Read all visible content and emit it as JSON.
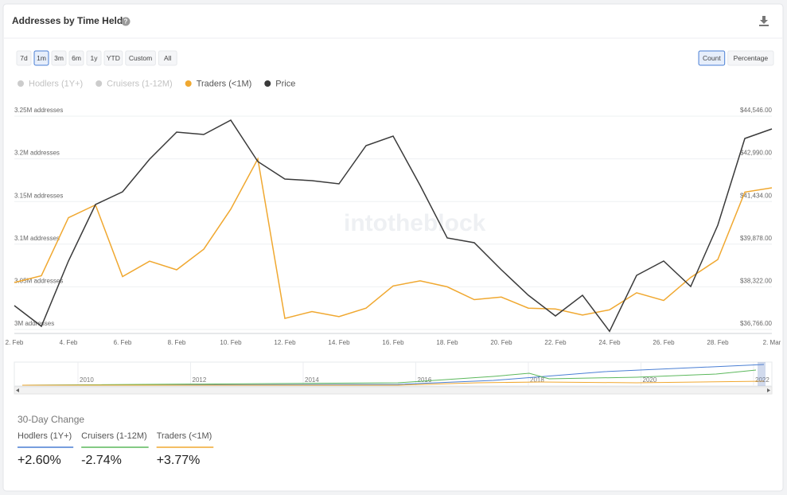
{
  "header": {
    "title": "Addresses by Time Held",
    "help": "?"
  },
  "range_buttons": [
    {
      "label": "7d",
      "active": false
    },
    {
      "label": "1m",
      "active": true
    },
    {
      "label": "3m",
      "active": false
    },
    {
      "label": "6m",
      "active": false
    },
    {
      "label": "1y",
      "active": false
    },
    {
      "label": "YTD",
      "active": false
    },
    {
      "label": "Custom",
      "active": false
    },
    {
      "label": "All",
      "active": false
    }
  ],
  "mode_buttons": [
    {
      "label": "Count",
      "active": true
    },
    {
      "label": "Percentage",
      "active": false
    }
  ],
  "watermark": "intotheblock",
  "chart_data": {
    "type": "line",
    "categories": [
      "2. Feb",
      null,
      "4. Feb",
      null,
      "6. Feb",
      null,
      "8. Feb",
      null,
      "10. Feb",
      null,
      "12. Feb",
      null,
      "14. Feb",
      null,
      "16. Feb",
      null,
      "18. Feb",
      null,
      "20. Feb",
      null,
      "22. Feb",
      null,
      "24. Feb",
      null,
      "26. Feb",
      null,
      "28. Feb",
      null,
      "2. Mar"
    ],
    "series": [
      {
        "name": "Hodlers (1Y+)",
        "color": "#cccccc",
        "visible": false
      },
      {
        "name": "Cruisers (1-12M)",
        "color": "#cccccc",
        "visible": false
      },
      {
        "name": "Traders (<1M)",
        "color": "#f0a830",
        "visible": true,
        "values": [
          3055000,
          3063000,
          3131000,
          3146000,
          3062000,
          3080000,
          3070000,
          3094000,
          3141000,
          3200000,
          3013000,
          3021000,
          3015000,
          3025000,
          3051000,
          3057000,
          3050000,
          3035000,
          3038000,
          3025000,
          3024000,
          3017000,
          3023000,
          3043000,
          3034000,
          3061000,
          3082000,
          3161000,
          3166000
        ]
      },
      {
        "name": "Price",
        "color": "#3a3a3a",
        "visible": true,
        "axis": "y2",
        "values": [
          37637,
          36882,
          39263,
          41324,
          41788,
          42978,
          43965,
          43878,
          44401,
          42891,
          42253,
          42194,
          42078,
          43472,
          43820,
          42020,
          40104,
          39930,
          38943,
          38014,
          37260,
          38014,
          36700,
          38740,
          39263,
          38334,
          40569,
          43733,
          44082
        ]
      }
    ],
    "ylim": [
      3000000,
      3250000
    ],
    "yticks": [
      {
        "value": 3000000,
        "label": "3M addresses"
      },
      {
        "value": 3050000,
        "label": "3.05M addresses"
      },
      {
        "value": 3100000,
        "label": "3.1M addresses"
      },
      {
        "value": 3150000,
        "label": "3.15M addresses"
      },
      {
        "value": 3200000,
        "label": "3.2M addresses"
      },
      {
        "value": 3250000,
        "label": "3.25M addresses"
      }
    ],
    "y2lim": [
      36766,
      44546
    ],
    "y2ticks": [
      {
        "value": 36766,
        "label": "$36,766.00"
      },
      {
        "value": 38322,
        "label": "$38,322.00"
      },
      {
        "value": 39878,
        "label": "$39,878.00"
      },
      {
        "value": 41434,
        "label": "$41,434.00"
      },
      {
        "value": 42990,
        "label": "$42,990.00"
      },
      {
        "value": 44546,
        "label": "$44,546.00"
      }
    ],
    "grid": true
  },
  "navigator_years": [
    "2010",
    "2012",
    "2014",
    "2016",
    "2018",
    "2020",
    "2022"
  ],
  "summary": {
    "title": "30-Day Change",
    "items": [
      {
        "label": "Hodlers (1Y+)",
        "color": "#4a7fd4",
        "value": "+2.60%"
      },
      {
        "label": "Cruisers (1-12M)",
        "color": "#5cb85c",
        "value": "-2.74%"
      },
      {
        "label": "Traders (<1M)",
        "color": "#f0a830",
        "value": "+3.77%"
      }
    ]
  }
}
